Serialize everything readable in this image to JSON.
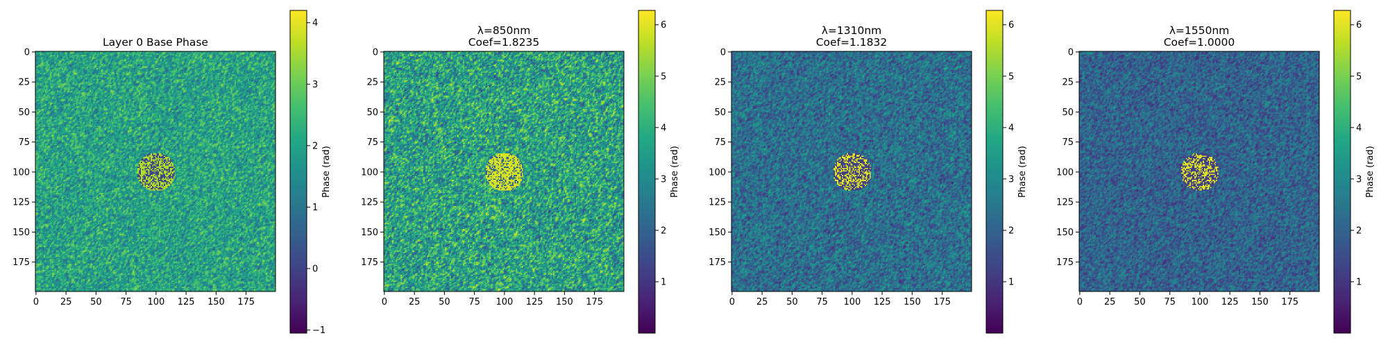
{
  "chart_data": [
    {
      "type": "heatmap",
      "title": "Layer 0 Base Phase",
      "xlim": [
        0,
        199
      ],
      "ylim": [
        199,
        0
      ],
      "x_ticks": [
        0,
        25,
        50,
        75,
        100,
        125,
        150,
        175
      ],
      "y_ticks": [
        0,
        25,
        50,
        75,
        100,
        125,
        150,
        175
      ],
      "colormap": "viridis",
      "colorbar": {
        "label": "Phase (rad)",
        "range": [
          -1.05,
          4.2
        ],
        "ticks": [
          -1,
          0,
          1,
          2,
          3,
          4
        ],
        "tick_labels": [
          "−1",
          "0",
          "1",
          "2",
          "3",
          "4"
        ]
      },
      "field": {
        "background_mean": 2.0,
        "background_spread": 1.6,
        "center_region": {
          "cx": 100,
          "cy": 100,
          "r": 16,
          "values": "mixed low (~0) and high (~3.6)"
        }
      }
    },
    {
      "type": "heatmap",
      "title": "λ=850nm\nCoef=1.8235",
      "xlim": [
        0,
        199
      ],
      "ylim": [
        199,
        0
      ],
      "x_ticks": [
        0,
        25,
        50,
        75,
        100,
        125,
        150,
        175
      ],
      "y_ticks": [
        0,
        25,
        50,
        75,
        100,
        125,
        150,
        175
      ],
      "colormap": "viridis",
      "colorbar": {
        "label": "Phase (rad)",
        "range": [
          0,
          6.28
        ],
        "ticks": [
          1,
          2,
          3,
          4,
          5,
          6
        ],
        "tick_labels": [
          "1",
          "2",
          "3",
          "4",
          "5",
          "6"
        ]
      },
      "field": {
        "background_mean": 3.6,
        "background_spread": 2.6,
        "center_region": {
          "cx": 100,
          "cy": 100,
          "r": 16,
          "values": "high (~5.8) with darker gaps"
        }
      }
    },
    {
      "type": "heatmap",
      "title": "λ=1310nm\nCoef=1.1832",
      "xlim": [
        0,
        199
      ],
      "ylim": [
        199,
        0
      ],
      "x_ticks": [
        0,
        25,
        50,
        75,
        100,
        125,
        150,
        175
      ],
      "y_ticks": [
        0,
        25,
        50,
        75,
        100,
        125,
        150,
        175
      ],
      "colormap": "viridis",
      "colorbar": {
        "label": "Phase (rad)",
        "range": [
          0,
          6.28
        ],
        "ticks": [
          1,
          2,
          3,
          4,
          5,
          6
        ],
        "tick_labels": [
          "1",
          "2",
          "3",
          "4",
          "5",
          "6"
        ]
      },
      "field": {
        "background_mean": 2.3,
        "background_spread": 1.7,
        "center_region": {
          "cx": 100,
          "cy": 100,
          "r": 16,
          "values": "bright yellow spots (~6) on dark"
        }
      }
    },
    {
      "type": "heatmap",
      "title": "λ=1550nm\nCoef=1.0000",
      "xlim": [
        0,
        199
      ],
      "ylim": [
        199,
        0
      ],
      "x_ticks": [
        0,
        25,
        50,
        75,
        100,
        125,
        150,
        175
      ],
      "y_ticks": [
        0,
        25,
        50,
        75,
        100,
        125,
        150,
        175
      ],
      "colormap": "viridis",
      "colorbar": {
        "label": "Phase (rad)",
        "range": [
          0,
          6.28
        ],
        "ticks": [
          1,
          2,
          3,
          4,
          5,
          6
        ],
        "tick_labels": [
          "1",
          "2",
          "3",
          "4",
          "5",
          "6"
        ]
      },
      "field": {
        "background_mean": 2.0,
        "background_spread": 1.5,
        "center_region": {
          "cx": 100,
          "cy": 100,
          "r": 16,
          "values": "bright yellow spots (~6) on dark"
        }
      }
    }
  ]
}
